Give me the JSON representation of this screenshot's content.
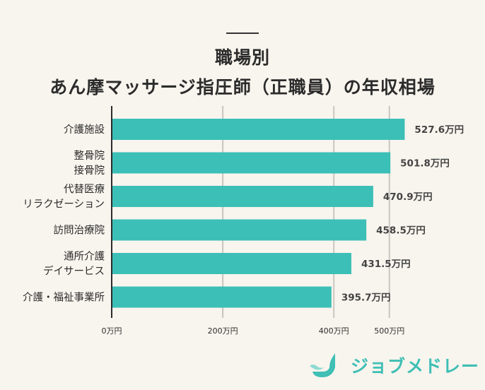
{
  "title_lines": [
    "職場別",
    "あん摩マッサージ指圧師（正職員）の年収相場"
  ],
  "brand": "ジョブメドレー",
  "colors": {
    "bar": "#3cbfb7",
    "grid": "#c8c6c0",
    "axis": "#2b2b2b",
    "background": "#f8f5ee",
    "brand": "#3fbfb5"
  },
  "chart_data": {
    "type": "bar",
    "orientation": "horizontal",
    "categories": [
      [
        "介護施設"
      ],
      [
        "整骨院",
        "接骨院"
      ],
      [
        "代替医療",
        "リラクゼーション"
      ],
      [
        "訪問治療院"
      ],
      [
        "通所介護",
        "デイサービス"
      ],
      [
        "介護・福祉事業所"
      ]
    ],
    "values": [
      527.6,
      501.8,
      470.9,
      458.5,
      431.5,
      395.7
    ],
    "value_labels": [
      "527.6万円",
      "501.8万円",
      "470.9万円",
      "458.5万円",
      "431.5万円",
      "395.7万円"
    ],
    "x_ticks": [
      0,
      200,
      400,
      500
    ],
    "x_tick_labels": [
      "0万円",
      "200万円",
      "400万円",
      "500万円"
    ],
    "xlim": [
      0,
      600
    ],
    "grid": true,
    "legend": "none"
  }
}
